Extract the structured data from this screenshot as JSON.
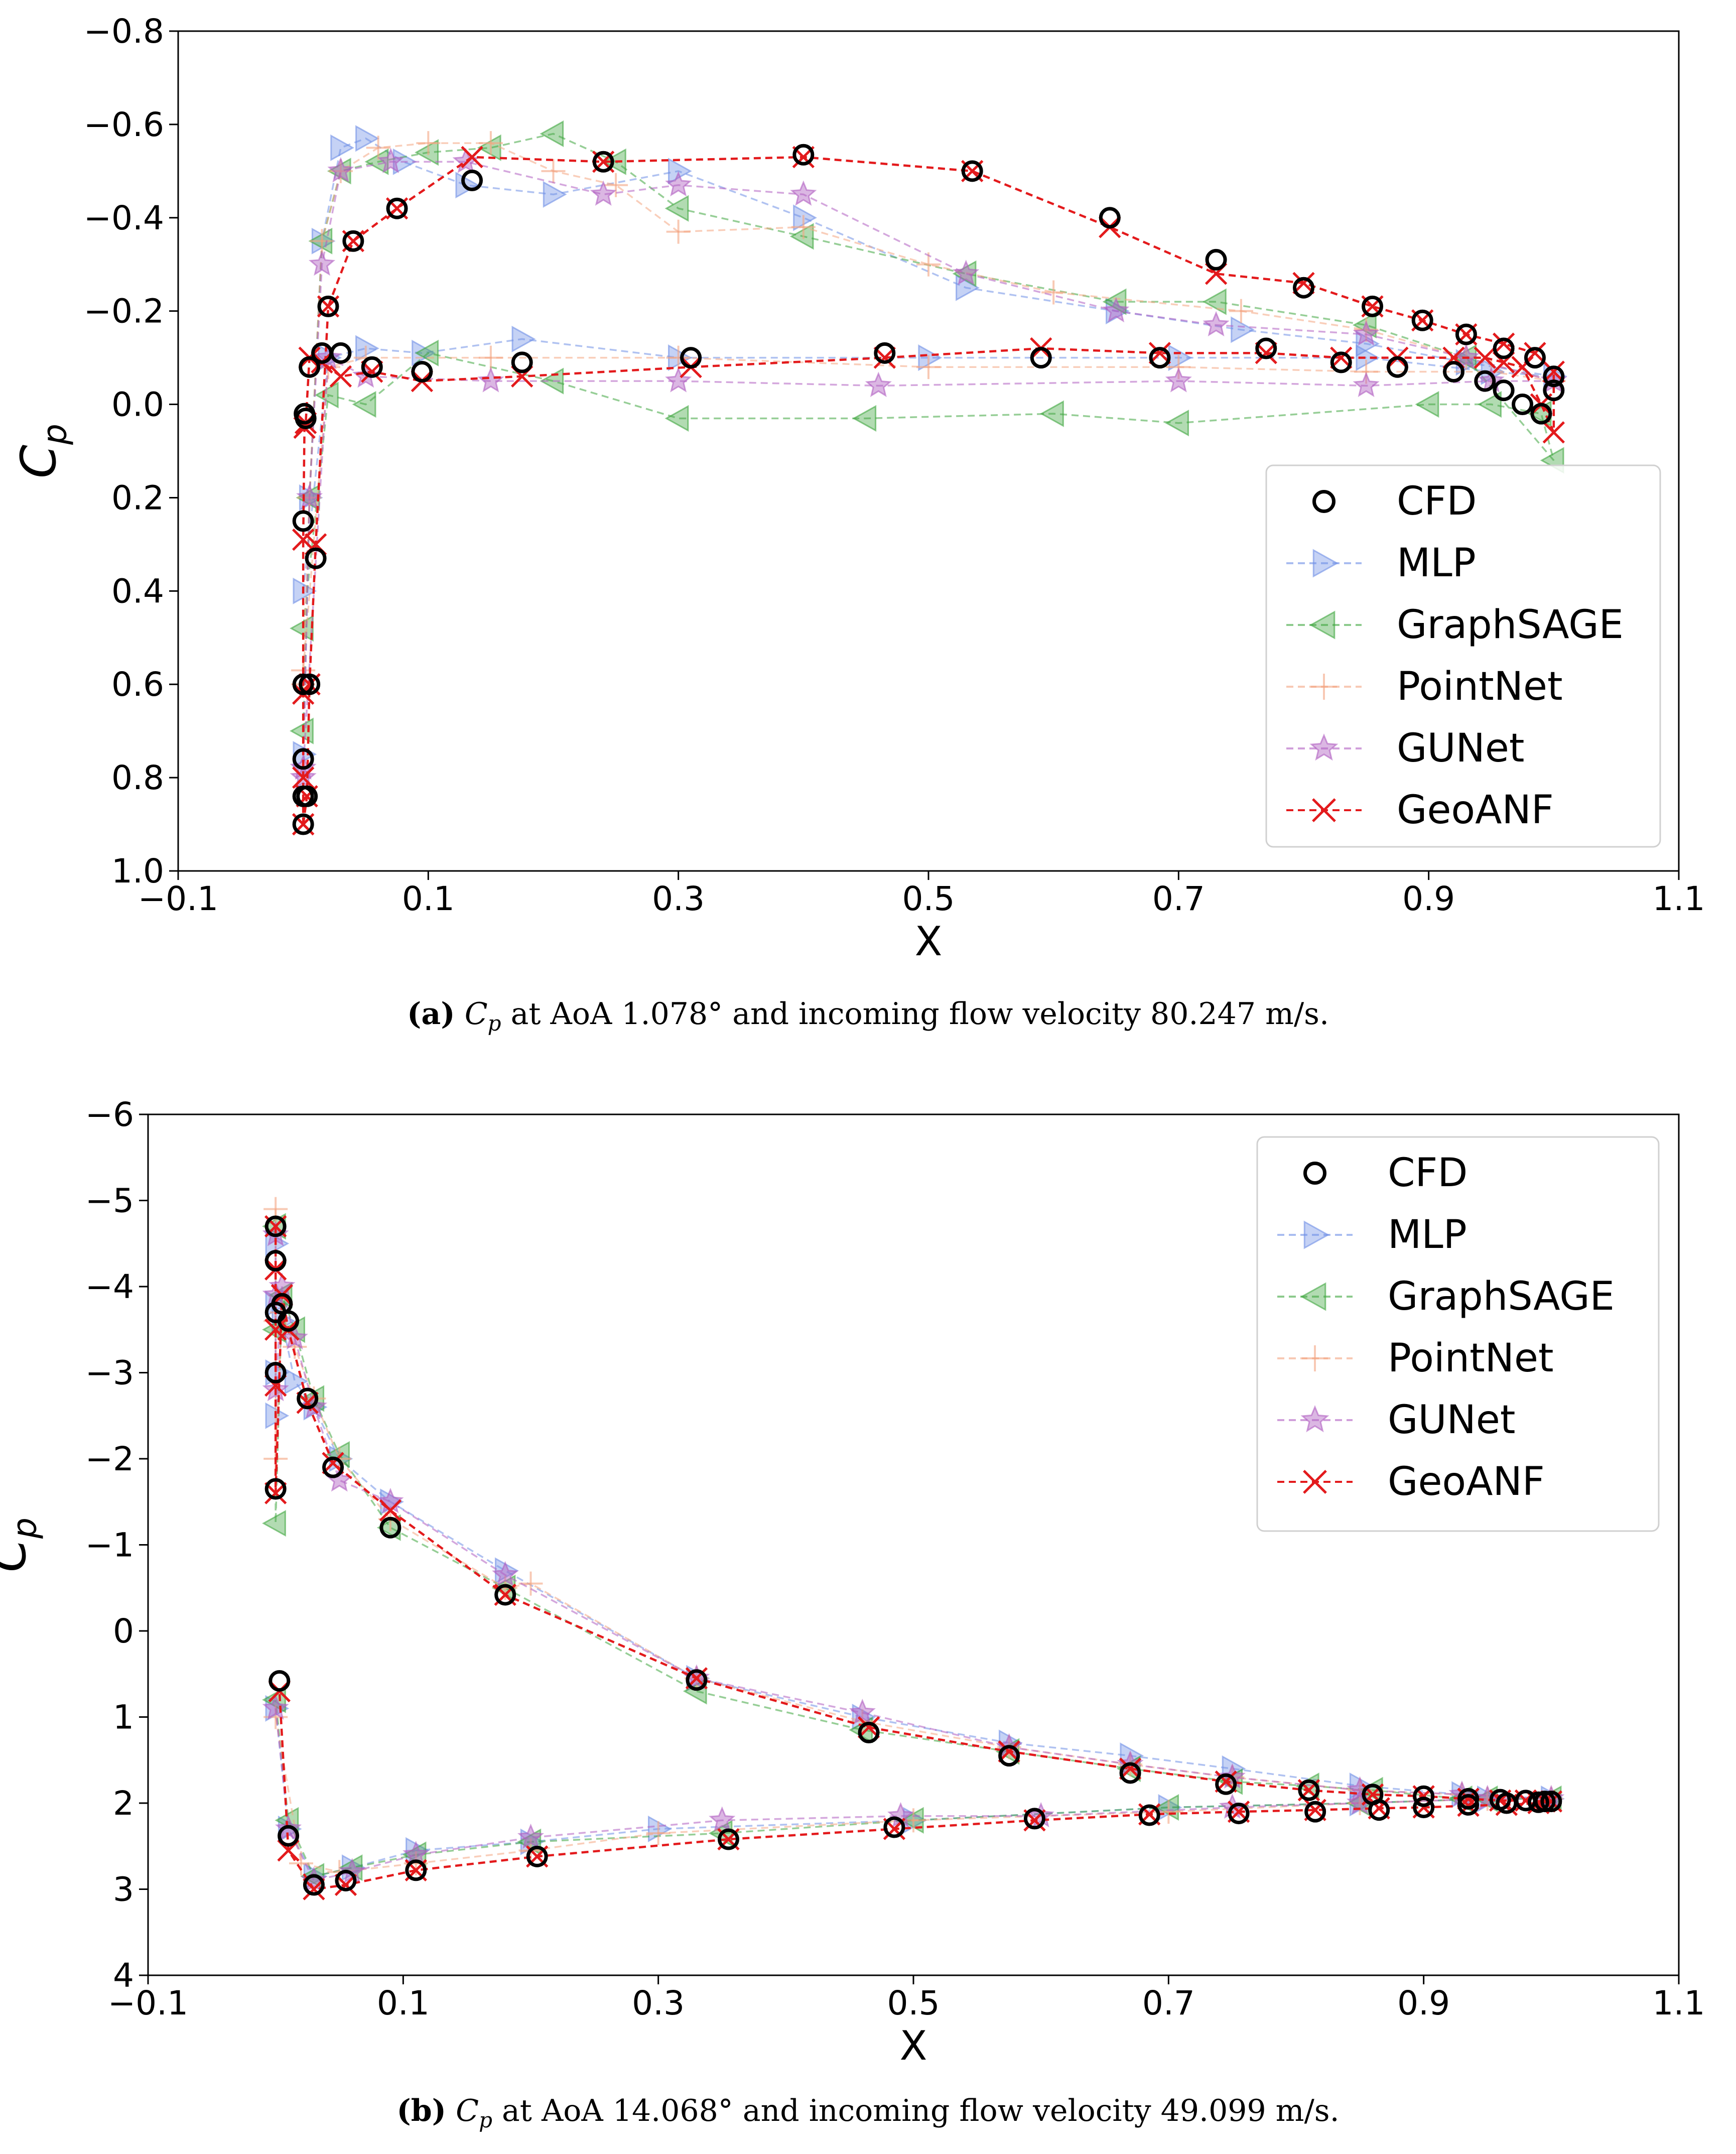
{
  "colors": {
    "CFD": "#000000",
    "MLP": "#6f8fe6",
    "GraphSAGE": "#3fa63f",
    "PointNet": "#f4a582",
    "GUNet": "#b05fc1",
    "GeoANF": "#e31a1c"
  },
  "legend_labels": [
    "CFD",
    "MLP",
    "GraphSAGE",
    "PointNet",
    "GUNet",
    "GeoANF"
  ],
  "marker_icons": [
    "circle-icon",
    "triangle-right-icon",
    "triangle-left-icon",
    "plus-icon",
    "star-icon",
    "x-icon"
  ],
  "captions": [
    {
      "tag": "(a)",
      "cp": "C",
      "sub": "p",
      "text": " at AoA 1.078° and incoming flow velocity 80.247 m/s."
    },
    {
      "tag": "(b)",
      "cp": "C",
      "sub": "p",
      "text": " at AoA 14.068° and incoming flow velocity 49.099 m/s."
    }
  ],
  "chart_data": [
    {
      "type": "line",
      "xlabel": "X",
      "ylabel": "Cp",
      "xlim": [
        -0.1,
        1.1
      ],
      "ylim": [
        1.0,
        -0.8
      ],
      "inverted_y": true,
      "xticks": [
        -0.1,
        0.1,
        0.3,
        0.5,
        0.7,
        0.9,
        1.1
      ],
      "xtick_labels": [
        "−0.1",
        "0.1",
        "0.3",
        "0.5",
        "0.7",
        "0.9",
        "1.1"
      ],
      "yticks": [
        -0.8,
        -0.6,
        -0.4,
        -0.2,
        0.0,
        0.2,
        0.4,
        0.6,
        0.8,
        1.0
      ],
      "ytick_labels": [
        "−0.8",
        "−0.6",
        "−0.4",
        "−0.2",
        "0.0",
        "0.2",
        "0.4",
        "0.6",
        "0.8",
        "1.0"
      ],
      "legend_position": "center-right",
      "series": [
        {
          "name": "CFD",
          "x": [
            0.0,
            0.003,
            0.005,
            0.01,
            0.02,
            0.04,
            0.075,
            0.135,
            0.24,
            0.4,
            0.535,
            0.645,
            0.73,
            0.8,
            0.855,
            0.895,
            0.93,
            0.96,
            0.985,
            1.0,
            1.0,
            0.99,
            0.975,
            0.96,
            0.945,
            0.92,
            0.875,
            0.83,
            0.77,
            0.685,
            0.59,
            0.465,
            0.31,
            0.175,
            0.095,
            0.055,
            0.03,
            0.015,
            0.005,
            0.002,
            0.001,
            0.0,
            0.0,
            0.0,
            0.0
          ],
          "y": [
            0.9,
            0.84,
            0.6,
            0.33,
            -0.21,
            -0.35,
            -0.42,
            -0.48,
            -0.52,
            -0.535,
            -0.5,
            -0.4,
            -0.31,
            -0.25,
            -0.21,
            -0.18,
            -0.15,
            -0.12,
            -0.1,
            -0.06,
            -0.03,
            0.02,
            0.0,
            -0.03,
            -0.05,
            -0.07,
            -0.08,
            -0.09,
            -0.12,
            -0.1,
            -0.1,
            -0.11,
            -0.1,
            -0.09,
            -0.07,
            -0.08,
            -0.11,
            -0.11,
            -0.08,
            0.03,
            0.02,
            0.25,
            0.6,
            0.76,
            0.84
          ]
        },
        {
          "name": "MLP",
          "x": [
            0.0,
            0.005,
            0.015,
            0.03,
            0.05,
            0.08,
            0.13,
            0.2,
            0.3,
            0.4,
            0.53,
            0.65,
            0.75,
            0.85,
            0.93,
            1.0,
            0.95,
            0.85,
            0.7,
            0.5,
            0.3,
            0.175,
            0.095,
            0.05,
            0.02,
            0.0
          ],
          "y": [
            0.75,
            0.2,
            -0.35,
            -0.55,
            -0.57,
            -0.52,
            -0.47,
            -0.45,
            -0.5,
            -0.4,
            -0.25,
            -0.2,
            -0.16,
            -0.13,
            -0.09,
            -0.06,
            -0.07,
            -0.1,
            -0.1,
            -0.1,
            -0.1,
            -0.14,
            -0.11,
            -0.12,
            -0.1,
            0.4
          ]
        },
        {
          "name": "GraphSAGE",
          "x": [
            0.0,
            0.005,
            0.015,
            0.03,
            0.06,
            0.1,
            0.15,
            0.2,
            0.25,
            0.3,
            0.4,
            0.53,
            0.65,
            0.73,
            0.85,
            0.93,
            1.0,
            0.99,
            0.95,
            0.9,
            0.7,
            0.6,
            0.45,
            0.3,
            0.2,
            0.1,
            0.05,
            0.02,
            0.0
          ],
          "y": [
            0.7,
            0.2,
            -0.35,
            -0.5,
            -0.52,
            -0.54,
            -0.55,
            -0.58,
            -0.52,
            -0.42,
            -0.36,
            -0.28,
            -0.22,
            -0.22,
            -0.17,
            -0.1,
            0.12,
            0.02,
            0.0,
            0.0,
            0.04,
            0.02,
            0.03,
            0.03,
            -0.05,
            -0.11,
            0.0,
            -0.02,
            0.48
          ]
        },
        {
          "name": "PointNet",
          "x": [
            0.0,
            0.005,
            0.015,
            0.03,
            0.06,
            0.1,
            0.15,
            0.2,
            0.25,
            0.3,
            0.4,
            0.5,
            0.6,
            0.75,
            0.85,
            0.93,
            1.0,
            0.95,
            0.85,
            0.7,
            0.5,
            0.3,
            0.15,
            0.05,
            0.02,
            0.0
          ],
          "y": [
            0.6,
            0.2,
            -0.35,
            -0.5,
            -0.55,
            -0.56,
            -0.56,
            -0.5,
            -0.47,
            -0.37,
            -0.38,
            -0.3,
            -0.24,
            -0.2,
            -0.16,
            -0.1,
            -0.05,
            -0.07,
            -0.07,
            -0.08,
            -0.08,
            -0.1,
            -0.1,
            -0.1,
            -0.08,
            0.57
          ]
        },
        {
          "name": "GUNet",
          "x": [
            0.0,
            0.005,
            0.015,
            0.03,
            0.07,
            0.13,
            0.24,
            0.3,
            0.4,
            0.53,
            0.65,
            0.73,
            0.85,
            0.93,
            1.0,
            0.95,
            0.85,
            0.7,
            0.46,
            0.3,
            0.15,
            0.05,
            0.02,
            0.0
          ],
          "y": [
            0.8,
            0.2,
            -0.3,
            -0.5,
            -0.52,
            -0.52,
            -0.45,
            -0.47,
            -0.45,
            -0.28,
            -0.2,
            -0.17,
            -0.15,
            -0.1,
            -0.05,
            -0.05,
            -0.04,
            -0.05,
            -0.04,
            -0.05,
            -0.05,
            -0.06,
            -0.1,
            0.78
          ]
        },
        {
          "name": "GeoANF",
          "x": [
            0.0,
            0.003,
            0.005,
            0.01,
            0.02,
            0.04,
            0.075,
            0.135,
            0.24,
            0.4,
            0.535,
            0.645,
            0.73,
            0.8,
            0.855,
            0.895,
            0.93,
            0.96,
            0.985,
            1.0,
            1.0,
            0.99,
            0.975,
            0.96,
            0.945,
            0.92,
            0.875,
            0.83,
            0.77,
            0.685,
            0.59,
            0.465,
            0.31,
            0.175,
            0.095,
            0.055,
            0.03,
            0.015,
            0.005,
            0.002,
            0.001,
            0.0,
            0.0,
            0.0,
            0.0
          ],
          "y": [
            0.9,
            0.84,
            0.6,
            0.3,
            -0.21,
            -0.35,
            -0.42,
            -0.53,
            -0.52,
            -0.53,
            -0.5,
            -0.38,
            -0.28,
            -0.26,
            -0.21,
            -0.18,
            -0.15,
            -0.13,
            -0.11,
            -0.07,
            0.06,
            0.0,
            -0.08,
            -0.09,
            -0.1,
            -0.1,
            -0.1,
            -0.1,
            -0.11,
            -0.11,
            -0.12,
            -0.1,
            -0.08,
            -0.06,
            -0.05,
            -0.07,
            -0.06,
            -0.09,
            -0.1,
            0.04,
            0.05,
            0.29,
            0.62,
            0.8,
            0.9
          ]
        }
      ]
    },
    {
      "type": "line",
      "xlabel": "X",
      "ylabel": "Cp",
      "xlim": [
        -0.1,
        1.1
      ],
      "ylim": [
        4,
        -6
      ],
      "inverted_y": true,
      "xticks": [
        -0.1,
        0.1,
        0.3,
        0.5,
        0.7,
        0.9,
        1.1
      ],
      "xtick_labels": [
        "−0.1",
        "0.1",
        "0.3",
        "0.5",
        "0.7",
        "0.9",
        "1.1"
      ],
      "yticks": [
        -6,
        -5,
        -4,
        -3,
        -2,
        -1,
        0,
        1,
        2,
        3,
        4
      ],
      "ytick_labels": [
        "−6",
        "−5",
        "−4",
        "−3",
        "−2",
        "−1",
        "0",
        "1",
        "2",
        "3",
        "4"
      ],
      "legend_position": "upper-right",
      "series": [
        {
          "name": "CFD",
          "x": [
            0.0,
            0.0,
            0.0,
            0.0,
            0.0,
            0.005,
            0.01,
            0.025,
            0.045,
            0.09,
            0.18,
            0.33,
            0.465,
            0.575,
            0.67,
            0.745,
            0.81,
            0.86,
            0.9,
            0.935,
            0.96,
            0.98,
            0.995,
            1.0,
            0.99,
            0.965,
            0.935,
            0.9,
            0.865,
            0.815,
            0.755,
            0.685,
            0.595,
            0.485,
            0.355,
            0.205,
            0.11,
            0.055,
            0.03,
            0.01,
            0.003
          ],
          "y": [
            -4.7,
            -4.3,
            -3.7,
            -3.0,
            -1.65,
            -3.8,
            -3.6,
            -2.7,
            -1.9,
            -1.2,
            -0.42,
            0.57,
            1.18,
            1.45,
            1.65,
            1.78,
            1.85,
            1.9,
            1.92,
            1.95,
            1.96,
            1.97,
            1.98,
            1.98,
            1.99,
            2.0,
            2.02,
            2.05,
            2.08,
            2.1,
            2.12,
            2.14,
            2.18,
            2.28,
            2.42,
            2.62,
            2.78,
            2.9,
            2.95,
            2.38,
            0.58
          ]
        },
        {
          "name": "MLP",
          "x": [
            0.0,
            0.0,
            0.0,
            0.0,
            0.005,
            0.015,
            0.03,
            0.05,
            0.09,
            0.18,
            0.33,
            0.46,
            0.575,
            0.67,
            0.75,
            0.85,
            0.93,
            1.0,
            0.95,
            0.85,
            0.7,
            0.5,
            0.3,
            0.2,
            0.11,
            0.06,
            0.03,
            0.01,
            0.0
          ],
          "y": [
            -3.8,
            -4.5,
            -3.0,
            -2.5,
            -3.6,
            -2.9,
            -2.6,
            -2.0,
            -1.5,
            -0.7,
            0.55,
            1.0,
            1.3,
            1.45,
            1.6,
            1.8,
            1.9,
            1.95,
            1.95,
            2.0,
            2.05,
            2.2,
            2.3,
            2.45,
            2.55,
            2.75,
            2.85,
            2.3,
            0.9
          ]
        },
        {
          "name": "GraphSAGE",
          "x": [
            0.0,
            0.0,
            0.0,
            0.005,
            0.015,
            0.03,
            0.05,
            0.09,
            0.18,
            0.33,
            0.46,
            0.575,
            0.67,
            0.75,
            0.81,
            0.86,
            0.93,
            1.0,
            0.95,
            0.85,
            0.7,
            0.5,
            0.35,
            0.2,
            0.11,
            0.06,
            0.03,
            0.01,
            0.0
          ],
          "y": [
            -4.7,
            -3.5,
            -1.25,
            -3.9,
            -3.5,
            -2.7,
            -2.05,
            -1.2,
            -0.5,
            0.7,
            1.15,
            1.4,
            1.6,
            1.75,
            1.8,
            1.85,
            1.95,
            1.95,
            1.95,
            2.0,
            2.05,
            2.2,
            2.35,
            2.45,
            2.6,
            2.75,
            2.85,
            2.2,
            0.8
          ]
        },
        {
          "name": "PointNet",
          "x": [
            0.0,
            0.0,
            0.0,
            0.005,
            0.015,
            0.03,
            0.05,
            0.09,
            0.18,
            0.2,
            0.33,
            0.46,
            0.575,
            0.67,
            0.75,
            0.85,
            0.93,
            1.0,
            0.95,
            0.85,
            0.7,
            0.5,
            0.3,
            0.2,
            0.11,
            0.05,
            0.02,
            0.0
          ],
          "y": [
            -4.9,
            -3.6,
            -2.0,
            -3.7,
            -3.3,
            -2.7,
            -2.0,
            -1.3,
            -0.5,
            -0.55,
            0.55,
            1.05,
            1.35,
            1.55,
            1.7,
            1.85,
            1.9,
            1.95,
            1.95,
            2.0,
            2.1,
            2.2,
            2.35,
            2.55,
            2.7,
            2.8,
            2.7,
            1.0
          ]
        },
        {
          "name": "GUNet",
          "x": [
            0.0,
            0.0,
            0.0,
            0.005,
            0.015,
            0.03,
            0.05,
            0.09,
            0.18,
            0.33,
            0.46,
            0.575,
            0.67,
            0.75,
            0.85,
            0.93,
            1.0,
            0.95,
            0.85,
            0.75,
            0.6,
            0.49,
            0.35,
            0.2,
            0.11,
            0.06,
            0.03,
            0.01,
            0.0
          ],
          "y": [
            -4.6,
            -3.9,
            -2.8,
            -4.0,
            -3.4,
            -2.6,
            -1.75,
            -1.5,
            -0.65,
            0.55,
            0.95,
            1.35,
            1.55,
            1.7,
            1.85,
            1.9,
            1.95,
            1.95,
            2.0,
            2.05,
            2.15,
            2.15,
            2.2,
            2.4,
            2.6,
            2.8,
            2.9,
            2.3,
            0.9
          ]
        },
        {
          "name": "GeoANF",
          "x": [
            0.0,
            0.0,
            0.0,
            0.0,
            0.0,
            0.005,
            0.01,
            0.025,
            0.045,
            0.09,
            0.18,
            0.33,
            0.465,
            0.575,
            0.67,
            0.745,
            0.81,
            0.86,
            0.9,
            0.935,
            0.96,
            0.98,
            0.995,
            1.0,
            0.99,
            0.965,
            0.935,
            0.9,
            0.865,
            0.815,
            0.755,
            0.685,
            0.595,
            0.485,
            0.355,
            0.205,
            0.11,
            0.055,
            0.03,
            0.01,
            0.003
          ],
          "y": [
            -4.7,
            -4.2,
            -3.5,
            -2.85,
            -1.6,
            -3.9,
            -3.5,
            -2.65,
            -1.95,
            -1.4,
            -0.42,
            0.55,
            1.12,
            1.4,
            1.6,
            1.75,
            1.85,
            1.9,
            1.92,
            1.95,
            1.97,
            1.97,
            1.98,
            1.98,
            2.0,
            2.02,
            2.03,
            2.05,
            2.06,
            2.08,
            2.1,
            2.13,
            2.2,
            2.3,
            2.42,
            2.62,
            2.78,
            2.95,
            3.0,
            2.55,
            0.7
          ]
        }
      ]
    }
  ]
}
